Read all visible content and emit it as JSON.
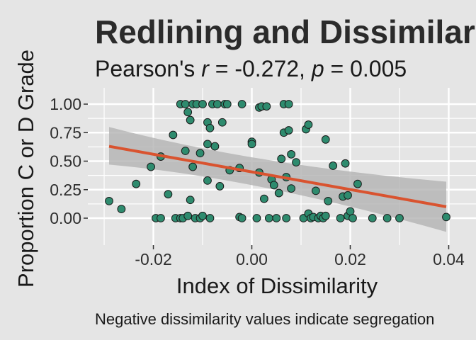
{
  "colors": {
    "background": "#e5e5e5",
    "grid": "#ffffff",
    "point_fill": "#2e8b6e",
    "point_stroke": "#1a1a1a",
    "trend_line": "#d9532f",
    "confidence_band": "#b3b3b3"
  },
  "chart_data": {
    "type": "scatter",
    "title": "Redlining and Dissimilarity",
    "subtitle": {
      "prefix": "Pearson's ",
      "r_symbol": "r",
      "r_value": " = -0.272, ",
      "p_symbol": "p",
      "p_value": " = 0.005"
    },
    "xlabel": "Index of Dissimilarity",
    "ylabel": "Proportion C or D Grade",
    "caption": "Negative dissimilarity values indicate segregation",
    "xlim": [
      -0.032,
      0.042
    ],
    "ylim": [
      -0.09,
      1.09
    ],
    "x_ticks": [
      -0.02,
      0.0,
      0.02,
      0.04
    ],
    "x_tick_labels": [
      "-0.02",
      "0.00",
      "0.02",
      "0.04"
    ],
    "y_ticks": [
      0.0,
      0.25,
      0.5,
      0.75,
      1.0
    ],
    "y_tick_labels": [
      "0.00",
      "0.25",
      "0.50",
      "0.75",
      "1.00"
    ],
    "grid": true,
    "trend": {
      "method": "linear",
      "x_range": [
        -0.029,
        0.0395
      ],
      "y_at_start": 0.63,
      "y_at_end": 0.1,
      "ci_lower_at_start": 0.47,
      "ci_upper_at_start": 0.8,
      "ci_mid_x": 0.0,
      "ci_lower_at_mid": 0.36,
      "ci_upper_at_mid": 0.47,
      "ci_lower_at_end": -0.12,
      "ci_upper_at_end": 0.32
    },
    "points": [
      {
        "x": -0.029,
        "y": 0.15
      },
      {
        "x": -0.0265,
        "y": 0.08
      },
      {
        "x": -0.0235,
        "y": 0.3
      },
      {
        "x": -0.0205,
        "y": 0.45
      },
      {
        "x": -0.0195,
        "y": 0.0
      },
      {
        "x": -0.0185,
        "y": 0.0
      },
      {
        "x": -0.0185,
        "y": 0.54
      },
      {
        "x": -0.017,
        "y": 0.21
      },
      {
        "x": -0.016,
        "y": 0.73
      },
      {
        "x": -0.0155,
        "y": 0.0
      },
      {
        "x": -0.0145,
        "y": 1.0
      },
      {
        "x": -0.0145,
        "y": 0.0
      },
      {
        "x": -0.014,
        "y": 0.0
      },
      {
        "x": -0.0135,
        "y": 0.59
      },
      {
        "x": -0.0135,
        "y": 1.0
      },
      {
        "x": -0.013,
        "y": 0.93
      },
      {
        "x": -0.013,
        "y": 0.02
      },
      {
        "x": -0.0125,
        "y": 0.86
      },
      {
        "x": -0.0125,
        "y": 0.16
      },
      {
        "x": -0.012,
        "y": 1.0
      },
      {
        "x": -0.012,
        "y": 0.45
      },
      {
        "x": -0.0115,
        "y": 0.0
      },
      {
        "x": -0.0112,
        "y": 1.0
      },
      {
        "x": -0.0105,
        "y": 0.57
      },
      {
        "x": -0.0105,
        "y": 0.0
      },
      {
        "x": -0.01,
        "y": 1.0
      },
      {
        "x": -0.01,
        "y": 0.02
      },
      {
        "x": -0.009,
        "y": 0.65
      },
      {
        "x": -0.009,
        "y": 0.84
      },
      {
        "x": -0.009,
        "y": 0.33
      },
      {
        "x": -0.0085,
        "y": 0.79
      },
      {
        "x": -0.0085,
        "y": 0.0
      },
      {
        "x": -0.008,
        "y": 1.0
      },
      {
        "x": -0.0075,
        "y": 0.63
      },
      {
        "x": -0.007,
        "y": 1.0
      },
      {
        "x": -0.0065,
        "y": 0.28
      },
      {
        "x": -0.006,
        "y": 0.84
      },
      {
        "x": -0.0055,
        "y": 1.0
      },
      {
        "x": -0.005,
        "y": 1.0
      },
      {
        "x": -0.0045,
        "y": 0.42
      },
      {
        "x": -0.0025,
        "y": 0.44
      },
      {
        "x": -0.0025,
        "y": 0.01
      },
      {
        "x": -0.002,
        "y": 1.0
      },
      {
        "x": -0.002,
        "y": 0.0
      },
      {
        "x": 0.0,
        "y": 0.67
      },
      {
        "x": 0.0,
        "y": 0.65
      },
      {
        "x": 0.001,
        "y": 0.0
      },
      {
        "x": 0.0015,
        "y": 0.4
      },
      {
        "x": 0.0015,
        "y": 0.97
      },
      {
        "x": 0.002,
        "y": 0.98
      },
      {
        "x": 0.0025,
        "y": 0.17
      },
      {
        "x": 0.003,
        "y": 0.98
      },
      {
        "x": 0.0035,
        "y": 0.0
      },
      {
        "x": 0.004,
        "y": 0.34
      },
      {
        "x": 0.0045,
        "y": 0.29
      },
      {
        "x": 0.005,
        "y": 0.0
      },
      {
        "x": 0.0055,
        "y": 0.22
      },
      {
        "x": 0.006,
        "y": 0.52
      },
      {
        "x": 0.0065,
        "y": 1.0
      },
      {
        "x": 0.0065,
        "y": 0.75
      },
      {
        "x": 0.007,
        "y": 0.0
      },
      {
        "x": 0.007,
        "y": 0.36
      },
      {
        "x": 0.0075,
        "y": 1.0
      },
      {
        "x": 0.0075,
        "y": 0.77
      },
      {
        "x": 0.008,
        "y": 0.56
      },
      {
        "x": 0.008,
        "y": 0.26
      },
      {
        "x": 0.009,
        "y": 0.49
      },
      {
        "x": 0.0105,
        "y": 0.0
      },
      {
        "x": 0.011,
        "y": 0.78
      },
      {
        "x": 0.0115,
        "y": 0.82
      },
      {
        "x": 0.0115,
        "y": 0.04
      },
      {
        "x": 0.012,
        "y": 0.0
      },
      {
        "x": 0.0125,
        "y": 0.01
      },
      {
        "x": 0.013,
        "y": 0.24
      },
      {
        "x": 0.0135,
        "y": 0.0
      },
      {
        "x": 0.014,
        "y": 0.02
      },
      {
        "x": 0.0145,
        "y": 0.0
      },
      {
        "x": 0.015,
        "y": 0.69
      },
      {
        "x": 0.015,
        "y": 0.02
      },
      {
        "x": 0.0155,
        "y": 0.15
      },
      {
        "x": 0.0165,
        "y": 0.46
      },
      {
        "x": 0.018,
        "y": 0.0
      },
      {
        "x": 0.0185,
        "y": 0.19
      },
      {
        "x": 0.019,
        "y": 0.48
      },
      {
        "x": 0.0195,
        "y": 0.2
      },
      {
        "x": 0.0195,
        "y": 0.02
      },
      {
        "x": 0.02,
        "y": 0.06
      },
      {
        "x": 0.0205,
        "y": 0.0
      },
      {
        "x": 0.0215,
        "y": 0.3
      },
      {
        "x": 0.0245,
        "y": 0.0
      },
      {
        "x": 0.0275,
        "y": 0.0
      },
      {
        "x": 0.03,
        "y": 0.0
      },
      {
        "x": 0.0395,
        "y": 0.01
      }
    ]
  }
}
